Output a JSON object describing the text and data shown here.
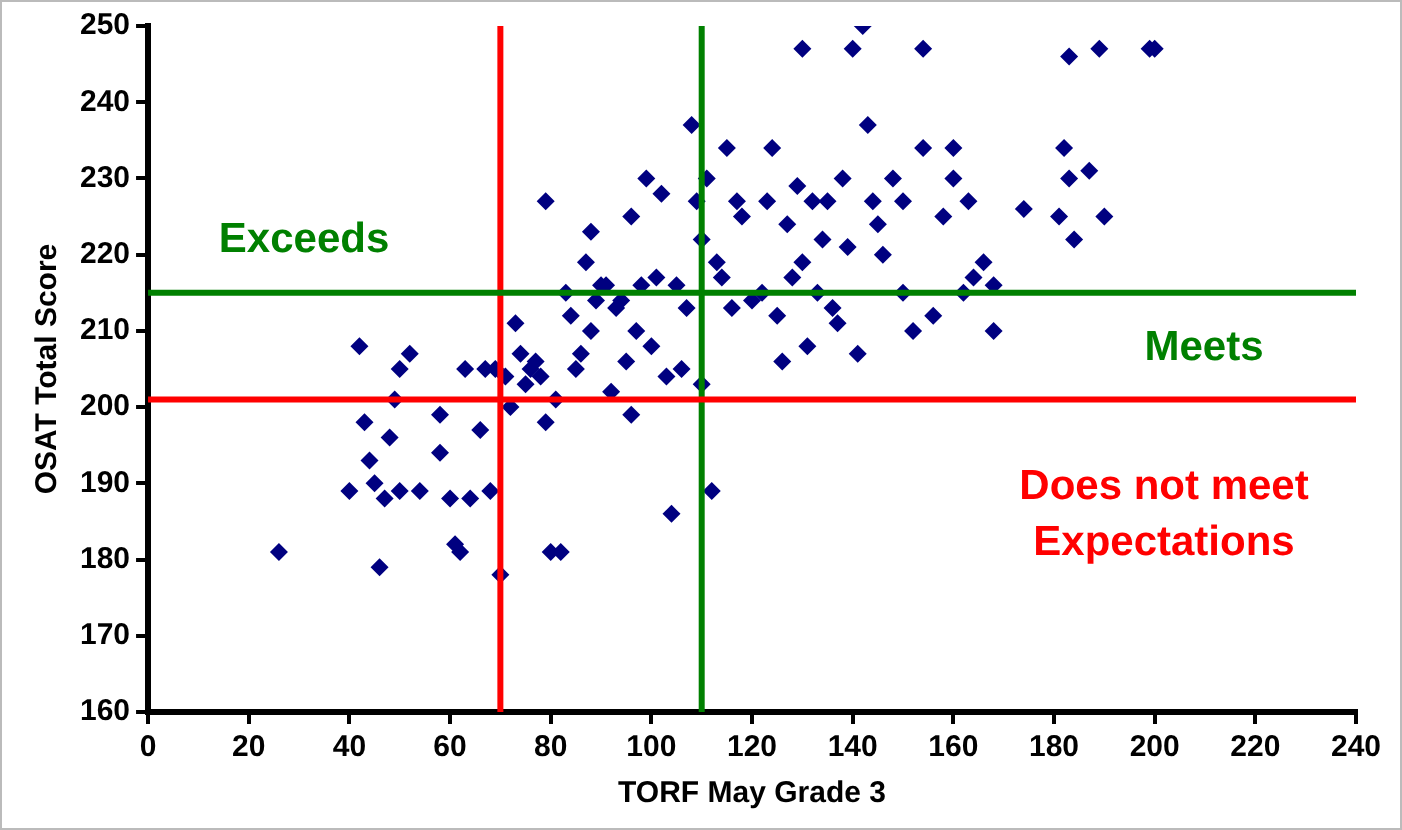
{
  "chart_data": {
    "type": "scatter",
    "xlabel": "TORF May Grade 3",
    "ylabel": "OSAT Total Score",
    "x": [
      26,
      40,
      42,
      43,
      44,
      45,
      46,
      47,
      48,
      49,
      50,
      50,
      52,
      54,
      58,
      58,
      60,
      61,
      62,
      63,
      64,
      66,
      67,
      68,
      69,
      70,
      71,
      72,
      73,
      74,
      75,
      76,
      77,
      78,
      79,
      79,
      80,
      81,
      82,
      83,
      84,
      85,
      86,
      87,
      88,
      88,
      89,
      90,
      91,
      92,
      93,
      94,
      95,
      96,
      96,
      97,
      98,
      99,
      100,
      101,
      102,
      103,
      104,
      105,
      106,
      107,
      108,
      109,
      110,
      110,
      111,
      112,
      113,
      114,
      115,
      116,
      117,
      118,
      120,
      122,
      123,
      124,
      125,
      126,
      127,
      128,
      129,
      130,
      130,
      131,
      132,
      133,
      134,
      135,
      136,
      137,
      138,
      139,
      140,
      141,
      142,
      143,
      144,
      145,
      146,
      148,
      150,
      150,
      152,
      154,
      154,
      156,
      158,
      160,
      160,
      162,
      163,
      164,
      166,
      168,
      168,
      174,
      181,
      182,
      183,
      183,
      184,
      187,
      189,
      190,
      199,
      200
    ],
    "values": [
      181,
      189,
      208,
      198,
      193,
      190,
      179,
      188,
      196,
      201,
      189,
      205,
      207,
      189,
      199,
      194,
      188,
      182,
      181,
      205,
      188,
      197,
      205,
      189,
      205,
      178,
      204,
      200,
      211,
      207,
      203,
      205,
      206,
      204,
      227,
      198,
      181,
      201,
      181,
      215,
      212,
      205,
      207,
      219,
      223,
      210,
      214,
      216,
      216,
      202,
      213,
      214,
      206,
      199,
      225,
      210,
      216,
      230,
      208,
      217,
      228,
      204,
      186,
      216,
      205,
      213,
      237,
      227,
      222,
      203,
      230,
      189,
      219,
      217,
      234,
      213,
      227,
      225,
      214,
      215,
      227,
      234,
      212,
      206,
      224,
      217,
      229,
      247,
      219,
      208,
      227,
      215,
      222,
      227,
      213,
      211,
      230,
      221,
      247,
      207,
      250,
      237,
      227,
      224,
      220,
      230,
      227,
      215,
      210,
      234,
      247,
      212,
      225,
      230,
      234,
      215,
      227,
      217,
      219,
      216,
      210,
      226,
      225,
      234,
      246,
      230,
      222,
      231,
      247,
      225,
      247,
      247
    ],
    "color": "#000080",
    "marker": "diamond",
    "xlim": [
      0,
      240
    ],
    "xticks": [
      0,
      20,
      40,
      60,
      80,
      100,
      120,
      140,
      160,
      180,
      200,
      220,
      240
    ],
    "ylim": [
      160,
      250
    ],
    "yticks": [
      160,
      170,
      180,
      190,
      200,
      210,
      220,
      230,
      240,
      250
    ],
    "grid": false,
    "legend": false,
    "ref_lines": [
      {
        "axis": "x",
        "value": 70,
        "color": "#ff0000"
      },
      {
        "axis": "x",
        "value": 110,
        "color": "#008000"
      },
      {
        "axis": "y",
        "value": 201,
        "color": "#ff0000"
      },
      {
        "axis": "y",
        "value": 215,
        "color": "#008000"
      }
    ],
    "annotations": [
      "Exceeds",
      "Meets",
      "Does not meet\nExpectations"
    ]
  }
}
